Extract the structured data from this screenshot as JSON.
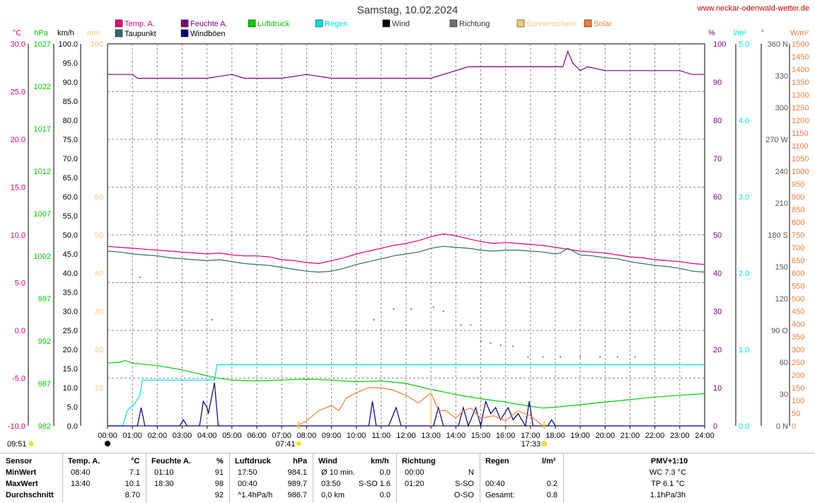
{
  "title": "Samstag, 10.02.2024",
  "site_url": "www.neckar-odenwald-wetter.de",
  "axis_units": {
    "temp": "°C",
    "pressure": "hPa",
    "wind": "km/h",
    "sun": "min",
    "humidity": "%",
    "rain": "l/m²",
    "direction": "°",
    "solar": "W/m²"
  },
  "legend": [
    {
      "label": "Temp. A.",
      "color": "#e0007a"
    },
    {
      "label": "Taupunkt",
      "color": "#2f6b6b"
    },
    {
      "label": "Feuchte A.",
      "color": "#800080"
    },
    {
      "label": "Windböen",
      "color": "#000080"
    },
    {
      "label": "Luftdruck",
      "color": "#00cc00"
    },
    {
      "label": "Regen",
      "color": "#00e0e0"
    },
    {
      "label": "Wind",
      "color": "#000000"
    },
    {
      "label": "Richtung",
      "color": "#707070"
    },
    {
      "label": "Sonnenschein",
      "color": "#f5c87a"
    },
    {
      "label": "Solar",
      "color": "#f07c3a"
    }
  ],
  "markers": {
    "moonrise": "09:51",
    "sunrise": "07:41",
    "sunset": "17:33"
  },
  "chart_data": {
    "type": "line",
    "title": "Samstag, 10.02.2024",
    "x_ticks": [
      "00:00",
      "01:00",
      "02:00",
      "03:00",
      "04:00",
      "05:00",
      "06:00",
      "07:00",
      "08:00",
      "09:00",
      "10:00",
      "11:00",
      "12:00",
      "13:00",
      "14:00",
      "15:00",
      "16:00",
      "17:00",
      "18:00",
      "19:00",
      "20:00",
      "21:00",
      "22:00",
      "23:00",
      "24:00"
    ],
    "x_range_hours": [
      0,
      24
    ],
    "axes": {
      "temp": {
        "label": "°C",
        "range": [
          -10,
          30
        ],
        "ticks": [
          "30.0",
          "25.0",
          "20.0",
          "15.0",
          "10.0",
          "5.0",
          "0.0",
          "-5.0",
          "-10.0"
        ],
        "color": "#e0007a"
      },
      "pressure": {
        "label": "hPa",
        "range": [
          982,
          1027
        ],
        "ticks": [
          "1027",
          "1022",
          "1017",
          "1012",
          "1007",
          "1002",
          "997",
          "992",
          "987",
          "982"
        ],
        "color": "#00cc00"
      },
      "wind": {
        "label": "km/h",
        "range": [
          0,
          100
        ],
        "ticks": [
          "100.0",
          "95.0",
          "90.0",
          "85.0",
          "80.0",
          "75.0",
          "70.0",
          "65.0",
          "60.0",
          "55.0",
          "50.0",
          "45.0",
          "40.0",
          "35.0",
          "30.0",
          "25.0",
          "20.0",
          "15.0",
          "10.0",
          "5.0",
          "0.0"
        ],
        "color": "#000000"
      },
      "sun": {
        "label": "min",
        "ticks": [
          "100",
          "60",
          "50",
          "40",
          "30",
          "20",
          "10"
        ],
        "color": "#f5c87a"
      },
      "humidity": {
        "label": "%",
        "range": [
          0,
          100
        ],
        "ticks": [
          "100",
          "90",
          "80",
          "70",
          "60",
          "50",
          "40",
          "30",
          "20",
          "10",
          "0"
        ],
        "color": "#800080"
      },
      "rain": {
        "label": "l/m²",
        "range": [
          0,
          5
        ],
        "ticks": [
          "5.0",
          "4.0",
          "3.0",
          "2.0",
          "1.0",
          "0.0"
        ],
        "color": "#00e0e0"
      },
      "direction": {
        "label": "°",
        "range": [
          0,
          360
        ],
        "ticks": [
          "360 N",
          "330",
          "300",
          "270 W",
          "240",
          "210",
          "180 S",
          "150",
          "120",
          "90 O",
          "60",
          "30",
          "0 N"
        ],
        "color": "#555555"
      },
      "solar": {
        "label": "W/m²",
        "range": [
          0,
          1500
        ],
        "ticks": [
          "1500",
          "1450",
          "1400",
          "1350",
          "1300",
          "1250",
          "1200",
          "1150",
          "1100",
          "1050",
          "1000",
          "950",
          "900",
          "850",
          "800",
          "750",
          "700",
          "650",
          "600",
          "550",
          "500",
          "450",
          "400",
          "350",
          "300",
          "250",
          "200",
          "150",
          "100",
          "50",
          "0"
        ],
        "color": "#f07c3a"
      }
    },
    "series": [
      {
        "name": "Temp. A.",
        "axis": "temp",
        "color": "#e0007a",
        "x": [
          0,
          0.5,
          1,
          1.5,
          2,
          2.5,
          3,
          3.5,
          4,
          4.5,
          5,
          5.5,
          6,
          6.5,
          7,
          7.5,
          8,
          8.5,
          9,
          9.5,
          10,
          10.5,
          11,
          11.5,
          12,
          12.5,
          13,
          13.5,
          14,
          14.5,
          15,
          15.5,
          16,
          16.5,
          17,
          17.5,
          18,
          18.5,
          19,
          19.5,
          20,
          20.5,
          21,
          21.5,
          22,
          22.5,
          23,
          23.5,
          24
        ],
        "y": [
          8.8,
          8.7,
          8.6,
          8.5,
          8.4,
          8.3,
          8.2,
          8.1,
          8.0,
          8.1,
          7.9,
          7.8,
          7.8,
          7.7,
          7.4,
          7.3,
          7.1,
          7.0,
          7.3,
          7.6,
          8.0,
          8.3,
          8.6,
          8.9,
          9.1,
          9.4,
          9.8,
          10.1,
          9.9,
          9.6,
          9.3,
          9.1,
          9.2,
          9.1,
          9.0,
          8.9,
          8.7,
          8.5,
          8.3,
          8.2,
          8.1,
          7.9,
          7.7,
          7.6,
          7.4,
          7.3,
          7.2,
          7.0,
          6.9
        ]
      },
      {
        "name": "Taupunkt",
        "axis": "temp",
        "color": "#2f6b6b",
        "x": [
          0,
          0.5,
          1,
          1.5,
          2,
          2.5,
          3,
          3.5,
          4,
          4.5,
          5,
          5.5,
          6,
          6.5,
          7,
          7.5,
          8,
          8.5,
          9,
          9.5,
          10,
          10.5,
          11,
          11.5,
          12,
          12.5,
          13,
          13.5,
          14,
          14.5,
          15,
          15.5,
          16,
          16.5,
          17,
          17.5,
          18,
          18.2,
          18.5,
          19,
          19.5,
          20,
          20.5,
          21,
          21.5,
          22,
          22.5,
          23,
          23.5,
          24
        ],
        "y": [
          8.3,
          8.2,
          8.0,
          7.9,
          7.8,
          7.6,
          7.5,
          7.4,
          7.3,
          7.4,
          7.2,
          7.0,
          6.9,
          6.8,
          6.6,
          6.4,
          6.2,
          6.1,
          6.2,
          6.5,
          6.9,
          7.2,
          7.5,
          7.8,
          8.0,
          8.2,
          8.6,
          8.8,
          8.7,
          8.6,
          8.4,
          8.3,
          8.4,
          8.4,
          8.3,
          8.2,
          8.0,
          8.1,
          8.6,
          7.9,
          7.8,
          7.6,
          7.5,
          7.2,
          7.0,
          6.8,
          6.7,
          6.5,
          6.2,
          6.1
        ]
      },
      {
        "name": "Feuchte A.",
        "axis": "humidity",
        "color": "#800080",
        "x": [
          0,
          1,
          1.2,
          1.5,
          2,
          3,
          3.5,
          4,
          5,
          5.5,
          6,
          7,
          8,
          9,
          10,
          11,
          12,
          13,
          13.5,
          14,
          14.5,
          15,
          16,
          17,
          18,
          18.3,
          18.5,
          18.7,
          19,
          19.3,
          20,
          21,
          22,
          23,
          23.5,
          24
        ],
        "y": [
          92,
          92,
          91,
          91,
          91,
          91,
          91,
          91,
          92,
          91,
          91,
          91,
          92,
          91,
          91,
          91,
          91,
          91,
          92,
          93,
          94,
          94,
          94,
          94,
          94,
          94,
          98,
          95,
          93,
          94,
          93,
          93,
          93,
          93,
          92,
          92
        ]
      },
      {
        "name": "Luftdruck",
        "axis": "pressure",
        "color": "#00cc00",
        "x": [
          0,
          0.5,
          0.7,
          1,
          2,
          3,
          4,
          4.5,
          5,
          6,
          7,
          8,
          9,
          10,
          11,
          12,
          13,
          14,
          15,
          16,
          17,
          17.5,
          18,
          19,
          20,
          21,
          22,
          23,
          24
        ],
        "y": [
          989.4,
          989.5,
          989.7,
          989.4,
          989.1,
          988.6,
          987.9,
          987.6,
          987.4,
          987.3,
          987.4,
          987.5,
          987.4,
          987.2,
          987.3,
          987.0,
          986.3,
          985.7,
          985.2,
          984.8,
          984.3,
          984.1,
          984.2,
          984.5,
          984.8,
          985.1,
          985.4,
          985.6,
          985.8
        ]
      },
      {
        "name": "Regen",
        "axis": "rain",
        "color": "#00e0e0",
        "x": [
          0,
          0.6,
          0.8,
          1.1,
          1.3,
          1.4,
          4.0,
          4.3,
          4.4,
          24
        ],
        "y": [
          0,
          0.0,
          0.2,
          0.3,
          0.4,
          0.6,
          0.6,
          0.6,
          0.8,
          0.8
        ]
      },
      {
        "name": "Windböen",
        "axis": "wind",
        "color": "#000080",
        "x": [
          0,
          1.2,
          1.35,
          1.5,
          2.9,
          3.05,
          3.2,
          3.7,
          3.85,
          4.0,
          4.05,
          4.15,
          4.3,
          4.45,
          4.6,
          10.5,
          10.65,
          10.8,
          11.3,
          11.6,
          11.8,
          12.2,
          13.1,
          13.3,
          13.5,
          14.1,
          14.3,
          14.5,
          14.8,
          15.0,
          15.2,
          15.4,
          15.6,
          15.8,
          16.1,
          16.3,
          16.5,
          16.8,
          16.95,
          17.1,
          17.7,
          17.85,
          18.0,
          24
        ],
        "y": [
          0,
          0,
          4.8,
          0,
          0,
          1.6,
          0,
          0,
          6.4,
          4.8,
          3.2,
          6.4,
          11.3,
          0,
          0,
          0,
          6.4,
          0,
          0,
          4.8,
          0,
          0,
          0,
          4.8,
          0,
          0,
          4.8,
          0,
          4.8,
          0,
          6.4,
          3.2,
          4.8,
          1.6,
          4.8,
          1.6,
          3.2,
          0,
          6.4,
          0,
          0,
          1.6,
          0,
          0
        ]
      },
      {
        "name": "Solar",
        "axis": "solar",
        "color": "#f07c3a",
        "x": [
          7.6,
          8,
          8.5,
          9,
          9.3,
          9.6,
          10,
          10.5,
          11,
          11.5,
          12,
          12.5,
          13,
          13.3,
          13.6,
          14,
          14.3,
          14.6,
          15,
          15.5,
          16,
          16.5,
          17,
          17.5
        ],
        "y": [
          0,
          20,
          60,
          80,
          60,
          110,
          130,
          150,
          150,
          140,
          120,
          90,
          130,
          60,
          60,
          30,
          60,
          70,
          30,
          40,
          20,
          60,
          40,
          0
        ]
      }
    ],
    "direction_points": {
      "x": [
        1.3,
        4.2,
        10.7,
        11.5,
        12.2,
        13.1,
        13.5,
        14.2,
        14.6,
        15.0,
        15.4,
        15.8,
        16.3,
        16.9,
        17.5,
        18.2,
        19.0,
        19.8,
        20.5,
        21.2
      ],
      "y": [
        140,
        100,
        100,
        110,
        110,
        112,
        108,
        95,
        95,
        80,
        78,
        76,
        75,
        65,
        65,
        65,
        65,
        65,
        65,
        65
      ]
    }
  },
  "table": {
    "headers": {
      "sensor": "Sensor",
      "temp": "Temp. A.",
      "temp_unit": "°C",
      "hum": "Feuchte A.",
      "hum_unit": "%",
      "press": "Luftdruck",
      "press_unit": "hPa",
      "wind": "Wind",
      "wind_unit": "km/h",
      "dir": "Richtung",
      "rain": "Regen",
      "rain_unit": "l/m²",
      "pmv": "PMV+1:10"
    },
    "rows": [
      {
        "label": "MinWert",
        "temp_time": "08:40",
        "temp_val": "7.1",
        "hum_time": "01:10",
        "hum_val": "91",
        "press_time": "17:50",
        "press_val": "984.1",
        "wind_time": "Ø 10 min.",
        "wind_val": "0.0",
        "dir_time": "00:00",
        "dir_val": "N",
        "rain_time": "",
        "rain_val": "",
        "pmv": "WC 7.3 °C"
      },
      {
        "label": "MaxWert",
        "temp_time": "13:40",
        "temp_val": "10.1",
        "hum_time": "18:30",
        "hum_val": "98",
        "press_time": "00:40",
        "press_val": "989.7",
        "wind_time": "03:50",
        "wind_val": "S-SO 1.6",
        "dir_time": "01:20",
        "dir_val": "S-SO",
        "rain_time": "00:40",
        "rain_val": "0.2",
        "pmv": "TP 6.1 °C"
      },
      {
        "label": "Durchschnitt",
        "temp_time": "",
        "temp_val": "8.70",
        "hum_time": "",
        "hum_val": "92",
        "press_time": "^1.4hPa/h",
        "press_val": "986.7",
        "wind_time": "0,0 km",
        "wind_val": "0.0",
        "dir_time": "",
        "dir_val": "O-SO",
        "rain_time": "Gesamt:",
        "rain_val": "0.8",
        "pmv": "1.1hPa/3h"
      }
    ]
  }
}
